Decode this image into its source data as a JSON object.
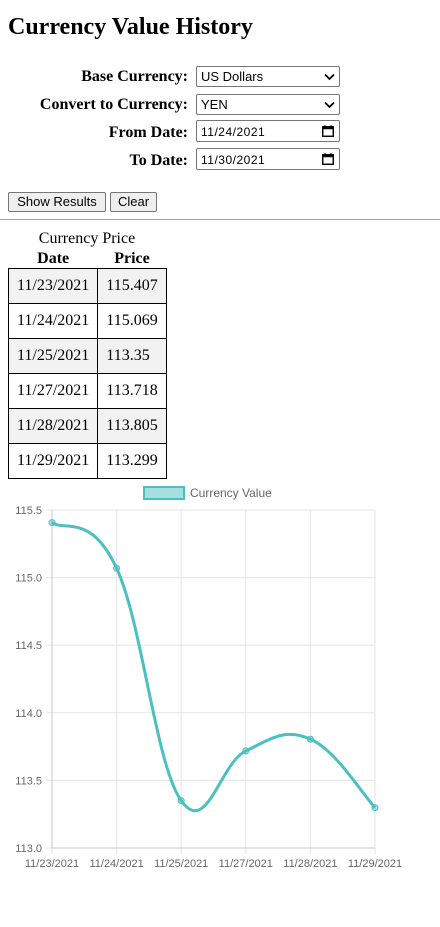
{
  "page": {
    "title": "Currency Value History"
  },
  "form": {
    "base_label": "Base Currency:",
    "base_value": "US Dollars",
    "convert_label": "Convert to Currency:",
    "convert_value": "YEN",
    "from_label": "From Date:",
    "from_value": "11/24/2021",
    "to_label": "To Date:",
    "to_value": "11/30/2021"
  },
  "buttons": {
    "show": "Show Results",
    "clear": "Clear"
  },
  "table": {
    "caption": "Currency Price",
    "headers": [
      "Date",
      "Price"
    ],
    "rows": [
      [
        "11/23/2021",
        "115.407"
      ],
      [
        "11/24/2021",
        "115.069"
      ],
      [
        "11/25/2021",
        "113.35"
      ],
      [
        "11/27/2021",
        "113.718"
      ],
      [
        "11/28/2021",
        "113.805"
      ],
      [
        "11/29/2021",
        "113.299"
      ]
    ]
  },
  "chart_data": {
    "type": "line",
    "x": [
      "11/23/2021",
      "11/24/2021",
      "11/25/2021",
      "11/27/2021",
      "11/28/2021",
      "11/29/2021"
    ],
    "series": [
      {
        "name": "Currency Value",
        "values": [
          115.407,
          115.069,
          113.35,
          113.718,
          113.805,
          113.299
        ],
        "color": "#4bc0c0"
      }
    ],
    "ylim": [
      113.0,
      115.5
    ],
    "yticks": [
      "115.5",
      "115.0",
      "114.5",
      "114.0",
      "113.5",
      "113.0"
    ],
    "grid": true,
    "legend": "top"
  }
}
